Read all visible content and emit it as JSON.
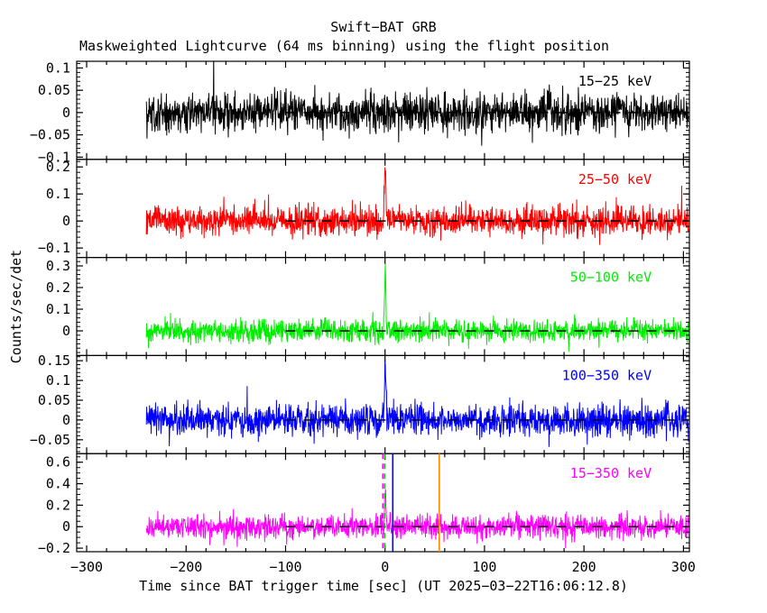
{
  "chart_data": {
    "type": "line",
    "title": "Swift−BAT GRB",
    "subtitle": "Maskweighted Lightcurve (64 ms binning) using the flight position",
    "xlabel": "Time since BAT trigger time [sec] (UT 2025−03−22T16:06:12.8)",
    "ylabel": "Counts/sec/det",
    "trigger_utc": "2025-03-22T16:06:12.8",
    "binning": "64 ms",
    "grid": false,
    "xlim": [
      -310,
      306
    ],
    "xticks": [
      -300,
      -200,
      -100,
      0,
      100,
      200,
      300
    ],
    "x_minor_step": 20,
    "data_t_range": [
      -240,
      305
    ],
    "band_label_t": 268,
    "zero_line": {
      "style": "dashed",
      "color": "#000000",
      "t_range": [
        -100,
        305
      ]
    },
    "panels": [
      {
        "band": "15−25 keV",
        "color": "#000000",
        "ylim": [
          -0.105,
          0.115
        ],
        "yticks": [
          0.1,
          0.05,
          0,
          -0.05,
          -0.1
        ],
        "y_minor_step": 0.01,
        "noise_sigma": 0.022,
        "spike_peak": 0
      },
      {
        "band": "25−50 keV",
        "color": "#FF0000",
        "ylim": [
          -0.135,
          0.228
        ],
        "yticks": [
          0.2,
          0.1,
          0,
          -0.1
        ],
        "y_minor_step": 0.02,
        "noise_sigma": 0.027,
        "spike_peak": 0.21
      },
      {
        "band": "50−100 keV",
        "color": "#00EE00",
        "ylim": [
          -0.114,
          0.339
        ],
        "yticks": [
          0.3,
          0.2,
          0.1,
          0
        ],
        "y_minor_step": 0.02,
        "noise_sigma": 0.026,
        "spike_peak": 0.29
      },
      {
        "band": "100−350 keV",
        "color": "#0000FF",
        "ylim": [
          -0.085,
          0.163
        ],
        "yticks": [
          0.15,
          0.1,
          0.05,
          0,
          -0.05
        ],
        "y_minor_step": 0.01,
        "noise_sigma": 0.02,
        "spike_peak": 0.135
      },
      {
        "band": "15−350 keV",
        "color": "#FF00FF",
        "ylim": [
          -0.233,
          0.68
        ],
        "yticks": [
          0.6,
          0.4,
          0.2,
          0,
          -0.2
        ],
        "y_minor_step": 0.05,
        "noise_sigma": 0.054,
        "spike_peak": 0.35
      }
    ],
    "event_markers": [
      {
        "panel_index": 4,
        "t": -2.2,
        "style": "dashed",
        "color": "#FF00FF"
      },
      {
        "panel_index": 4,
        "t": -0.4,
        "style": "dashed",
        "color": "#00CC00"
      },
      {
        "panel_index": 4,
        "t": 7.8,
        "style": "solid",
        "color": "#0000EE"
      },
      {
        "panel_index": 4,
        "t": 54.5,
        "style": "solid",
        "color": "#FF8800"
      }
    ]
  }
}
